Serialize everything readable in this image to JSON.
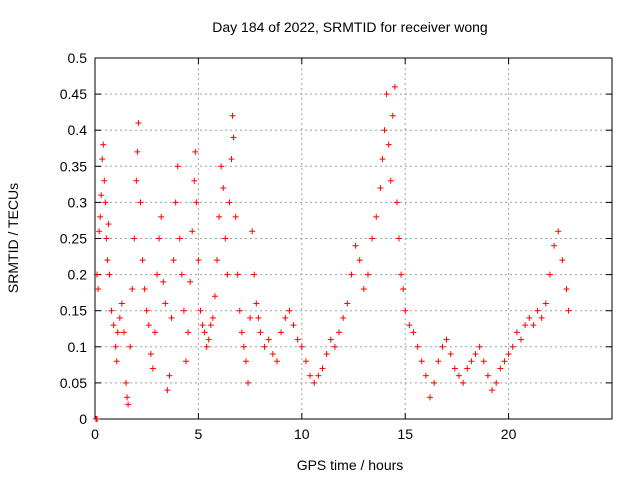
{
  "chart_data": {
    "type": "scatter",
    "title": "Day 184 of 2022, SRMTID for receiver wong",
    "xlabel": "GPS time / hours",
    "ylabel": "SRMTID / TECUs",
    "xlim": [
      0,
      25
    ],
    "ylim": [
      0,
      0.5
    ],
    "x_ticks": [
      0,
      5,
      10,
      15,
      20
    ],
    "x_tick_labels": [
      "0",
      "5",
      "10",
      "15",
      "20"
    ],
    "y_ticks": [
      0,
      0.05,
      0.1,
      0.15,
      0.2,
      0.25,
      0.3,
      0.35,
      0.4,
      0.45,
      0.5
    ],
    "y_tick_labels": [
      "0",
      "0.05",
      "0.1",
      "0.15",
      "0.2",
      "0.25",
      "0.3",
      "0.35",
      "0.4",
      "0.45",
      "0.5"
    ],
    "grid": true,
    "marker": "+",
    "marker_color": "#ff0000",
    "series": [
      {
        "name": "SRMTID",
        "points": [
          [
            0.05,
            0.0
          ],
          [
            0.1,
            0.0
          ],
          [
            0.1,
            0.2
          ],
          [
            0.15,
            0.18
          ],
          [
            0.2,
            0.26
          ],
          [
            0.25,
            0.28
          ],
          [
            0.3,
            0.31
          ],
          [
            0.35,
            0.36
          ],
          [
            0.4,
            0.38
          ],
          [
            0.45,
            0.33
          ],
          [
            0.5,
            0.3
          ],
          [
            0.55,
            0.25
          ],
          [
            0.6,
            0.22
          ],
          [
            0.65,
            0.27
          ],
          [
            0.7,
            0.2
          ],
          [
            0.8,
            0.15
          ],
          [
            0.9,
            0.13
          ],
          [
            1.0,
            0.1
          ],
          [
            1.05,
            0.08
          ],
          [
            1.1,
            0.12
          ],
          [
            1.2,
            0.14
          ],
          [
            1.3,
            0.16
          ],
          [
            1.4,
            0.12
          ],
          [
            1.5,
            0.05
          ],
          [
            1.55,
            0.03
          ],
          [
            1.6,
            0.02
          ],
          [
            1.7,
            0.1
          ],
          [
            1.8,
            0.18
          ],
          [
            1.9,
            0.25
          ],
          [
            2.0,
            0.33
          ],
          [
            2.05,
            0.37
          ],
          [
            2.1,
            0.41
          ],
          [
            2.2,
            0.3
          ],
          [
            2.3,
            0.22
          ],
          [
            2.4,
            0.18
          ],
          [
            2.5,
            0.15
          ],
          [
            2.6,
            0.13
          ],
          [
            2.7,
            0.09
          ],
          [
            2.8,
            0.07
          ],
          [
            2.9,
            0.12
          ],
          [
            3.0,
            0.2
          ],
          [
            3.1,
            0.25
          ],
          [
            3.2,
            0.28
          ],
          [
            3.3,
            0.19
          ],
          [
            3.4,
            0.16
          ],
          [
            3.5,
            0.04
          ],
          [
            3.6,
            0.06
          ],
          [
            3.7,
            0.14
          ],
          [
            3.8,
            0.22
          ],
          [
            3.9,
            0.3
          ],
          [
            4.0,
            0.35
          ],
          [
            4.1,
            0.25
          ],
          [
            4.2,
            0.2
          ],
          [
            4.3,
            0.15
          ],
          [
            4.4,
            0.08
          ],
          [
            4.5,
            0.12
          ],
          [
            4.6,
            0.19
          ],
          [
            4.7,
            0.26
          ],
          [
            4.8,
            0.33
          ],
          [
            4.85,
            0.37
          ],
          [
            4.9,
            0.3
          ],
          [
            5.0,
            0.22
          ],
          [
            5.1,
            0.15
          ],
          [
            5.2,
            0.13
          ],
          [
            5.3,
            0.12
          ],
          [
            5.4,
            0.1
          ],
          [
            5.5,
            0.11
          ],
          [
            5.6,
            0.13
          ],
          [
            5.7,
            0.14
          ],
          [
            5.8,
            0.17
          ],
          [
            5.9,
            0.22
          ],
          [
            6.0,
            0.28
          ],
          [
            6.1,
            0.35
          ],
          [
            6.2,
            0.32
          ],
          [
            6.3,
            0.25
          ],
          [
            6.4,
            0.2
          ],
          [
            6.5,
            0.3
          ],
          [
            6.6,
            0.36
          ],
          [
            6.65,
            0.42
          ],
          [
            6.7,
            0.39
          ],
          [
            6.8,
            0.28
          ],
          [
            6.9,
            0.2
          ],
          [
            7.0,
            0.15
          ],
          [
            7.1,
            0.12
          ],
          [
            7.2,
            0.1
          ],
          [
            7.3,
            0.08
          ],
          [
            7.4,
            0.05
          ],
          [
            7.5,
            0.14
          ],
          [
            7.6,
            0.26
          ],
          [
            7.7,
            0.2
          ],
          [
            7.8,
            0.16
          ],
          [
            7.9,
            0.14
          ],
          [
            8.0,
            0.12
          ],
          [
            8.2,
            0.1
          ],
          [
            8.4,
            0.11
          ],
          [
            8.6,
            0.09
          ],
          [
            8.8,
            0.08
          ],
          [
            9.0,
            0.12
          ],
          [
            9.2,
            0.14
          ],
          [
            9.4,
            0.15
          ],
          [
            9.6,
            0.13
          ],
          [
            9.8,
            0.11
          ],
          [
            10.0,
            0.1
          ],
          [
            10.2,
            0.08
          ],
          [
            10.4,
            0.06
          ],
          [
            10.6,
            0.05
          ],
          [
            10.8,
            0.06
          ],
          [
            11.0,
            0.07
          ],
          [
            11.2,
            0.09
          ],
          [
            11.4,
            0.11
          ],
          [
            11.6,
            0.1
          ],
          [
            11.8,
            0.12
          ],
          [
            12.0,
            0.14
          ],
          [
            12.2,
            0.16
          ],
          [
            12.4,
            0.2
          ],
          [
            12.6,
            0.24
          ],
          [
            12.8,
            0.22
          ],
          [
            13.0,
            0.18
          ],
          [
            13.2,
            0.2
          ],
          [
            13.4,
            0.25
          ],
          [
            13.6,
            0.28
          ],
          [
            13.8,
            0.32
          ],
          [
            13.9,
            0.36
          ],
          [
            14.0,
            0.4
          ],
          [
            14.1,
            0.45
          ],
          [
            14.2,
            0.38
          ],
          [
            14.3,
            0.33
          ],
          [
            14.4,
            0.42
          ],
          [
            14.5,
            0.46
          ],
          [
            14.6,
            0.3
          ],
          [
            14.7,
            0.25
          ],
          [
            14.8,
            0.2
          ],
          [
            14.9,
            0.18
          ],
          [
            15.0,
            0.15
          ],
          [
            15.2,
            0.13
          ],
          [
            15.4,
            0.12
          ],
          [
            15.6,
            0.1
          ],
          [
            15.8,
            0.08
          ],
          [
            16.0,
            0.06
          ],
          [
            16.2,
            0.03
          ],
          [
            16.4,
            0.05
          ],
          [
            16.6,
            0.08
          ],
          [
            16.8,
            0.1
          ],
          [
            17.0,
            0.11
          ],
          [
            17.2,
            0.09
          ],
          [
            17.4,
            0.07
          ],
          [
            17.6,
            0.06
          ],
          [
            17.8,
            0.05
          ],
          [
            18.0,
            0.07
          ],
          [
            18.2,
            0.08
          ],
          [
            18.4,
            0.09
          ],
          [
            18.6,
            0.1
          ],
          [
            18.8,
            0.08
          ],
          [
            19.0,
            0.06
          ],
          [
            19.2,
            0.04
          ],
          [
            19.4,
            0.05
          ],
          [
            19.6,
            0.07
          ],
          [
            19.8,
            0.08
          ],
          [
            20.0,
            0.09
          ],
          [
            20.2,
            0.1
          ],
          [
            20.4,
            0.12
          ],
          [
            20.6,
            0.11
          ],
          [
            20.8,
            0.13
          ],
          [
            21.0,
            0.14
          ],
          [
            21.2,
            0.13
          ],
          [
            21.4,
            0.15
          ],
          [
            21.6,
            0.14
          ],
          [
            21.8,
            0.16
          ],
          [
            22.0,
            0.2
          ],
          [
            22.2,
            0.24
          ],
          [
            22.4,
            0.26
          ],
          [
            22.6,
            0.22
          ],
          [
            22.8,
            0.18
          ],
          [
            22.9,
            0.15
          ]
        ]
      }
    ]
  }
}
